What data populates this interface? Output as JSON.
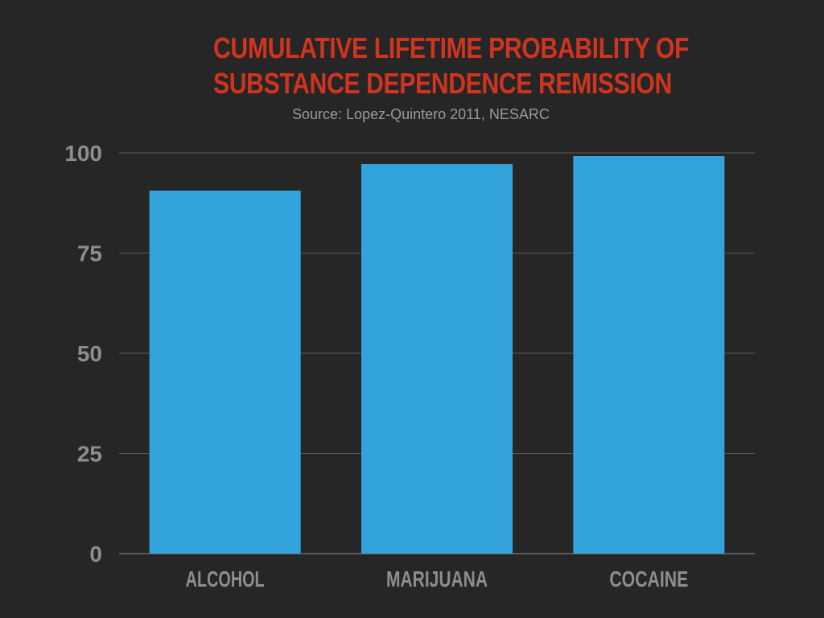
{
  "colors": {
    "background": "#262626",
    "bar": "#33a3dc",
    "title": "#d0341f",
    "gridline": "#5a5a5a",
    "axis_text": "#8e8e8e"
  },
  "chart_data": {
    "type": "bar",
    "title_lines": [
      "CUMULATIVE LIFETIME PROBABILITY OF",
      "SUBSTANCE DEPENDENCE REMISSION"
    ],
    "subtitle": "Source: Lopez-Quintero 2011, NESARC",
    "categories": [
      "ALCOHOL",
      "MARIJUANA",
      "COCAINE"
    ],
    "values": [
      90.6,
      97.2,
      99.2
    ],
    "ylim": [
      0,
      100
    ],
    "yticks": [
      0,
      25,
      50,
      75,
      100
    ],
    "xlabel": "",
    "ylabel": "",
    "grid": true,
    "legend": "none"
  }
}
